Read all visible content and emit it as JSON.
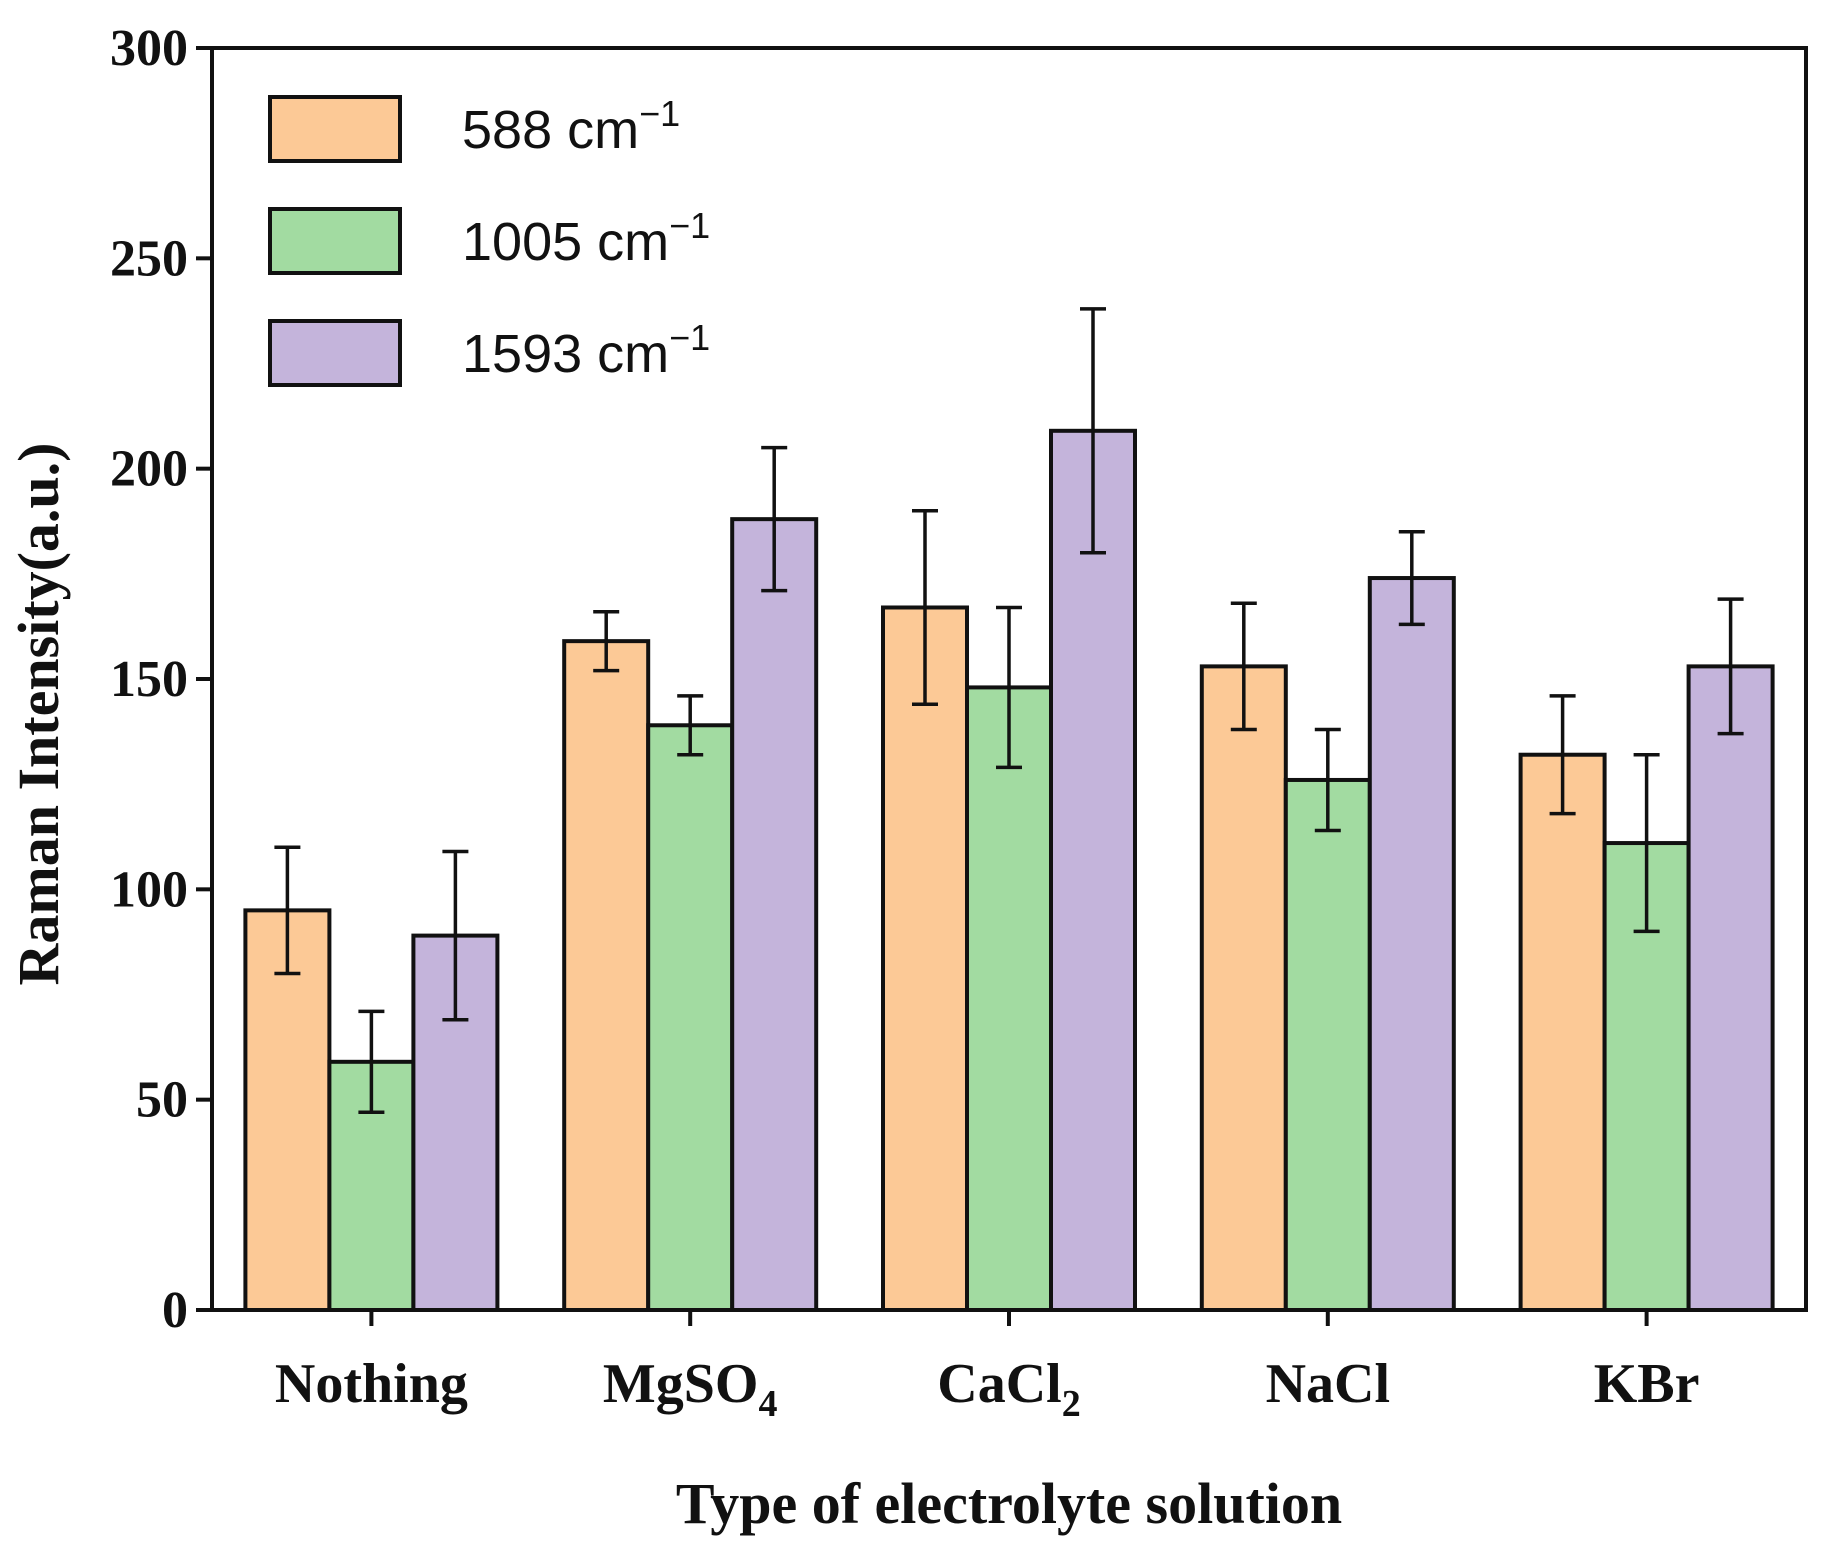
{
  "chart_data": {
    "type": "bar",
    "title": "",
    "xlabel": "Type of electrolyte solution",
    "ylabel": "Raman Intensity(a.u.)",
    "ylim": [
      0,
      300
    ],
    "yticks": [
      0,
      50,
      100,
      150,
      200,
      250,
      300
    ],
    "grid": false,
    "legend_position": "top-left",
    "categories": [
      {
        "label": "Nothing",
        "base": "Nothing",
        "sub": ""
      },
      {
        "label": "MgSO4",
        "base": "MgSO",
        "sub": "4"
      },
      {
        "label": "CaCl2",
        "base": "CaCl",
        "sub": "2"
      },
      {
        "label": "NaCl",
        "base": "NaCl",
        "sub": ""
      },
      {
        "label": "KBr",
        "base": "KBr",
        "sub": ""
      }
    ],
    "series": [
      {
        "name": "588 cm⁻¹",
        "name_base": "588 cm",
        "name_sup": "−1",
        "color": "#FCC996",
        "values": [
          95,
          159,
          167,
          153,
          132
        ],
        "errors": [
          15,
          7,
          23,
          15,
          14
        ]
      },
      {
        "name": "1005 cm⁻¹",
        "name_base": "1005 cm",
        "name_sup": "−1",
        "color": "#A2DBA1",
        "values": [
          59,
          139,
          148,
          126,
          111
        ],
        "errors": [
          12,
          7,
          19,
          12,
          21
        ]
      },
      {
        "name": "1593 cm⁻¹",
        "name_base": "1593 cm",
        "name_sup": "−1",
        "color": "#C4B4DB",
        "values": [
          89,
          188,
          209,
          174,
          153
        ],
        "errors": [
          20,
          17,
          29,
          11,
          16
        ]
      }
    ]
  }
}
